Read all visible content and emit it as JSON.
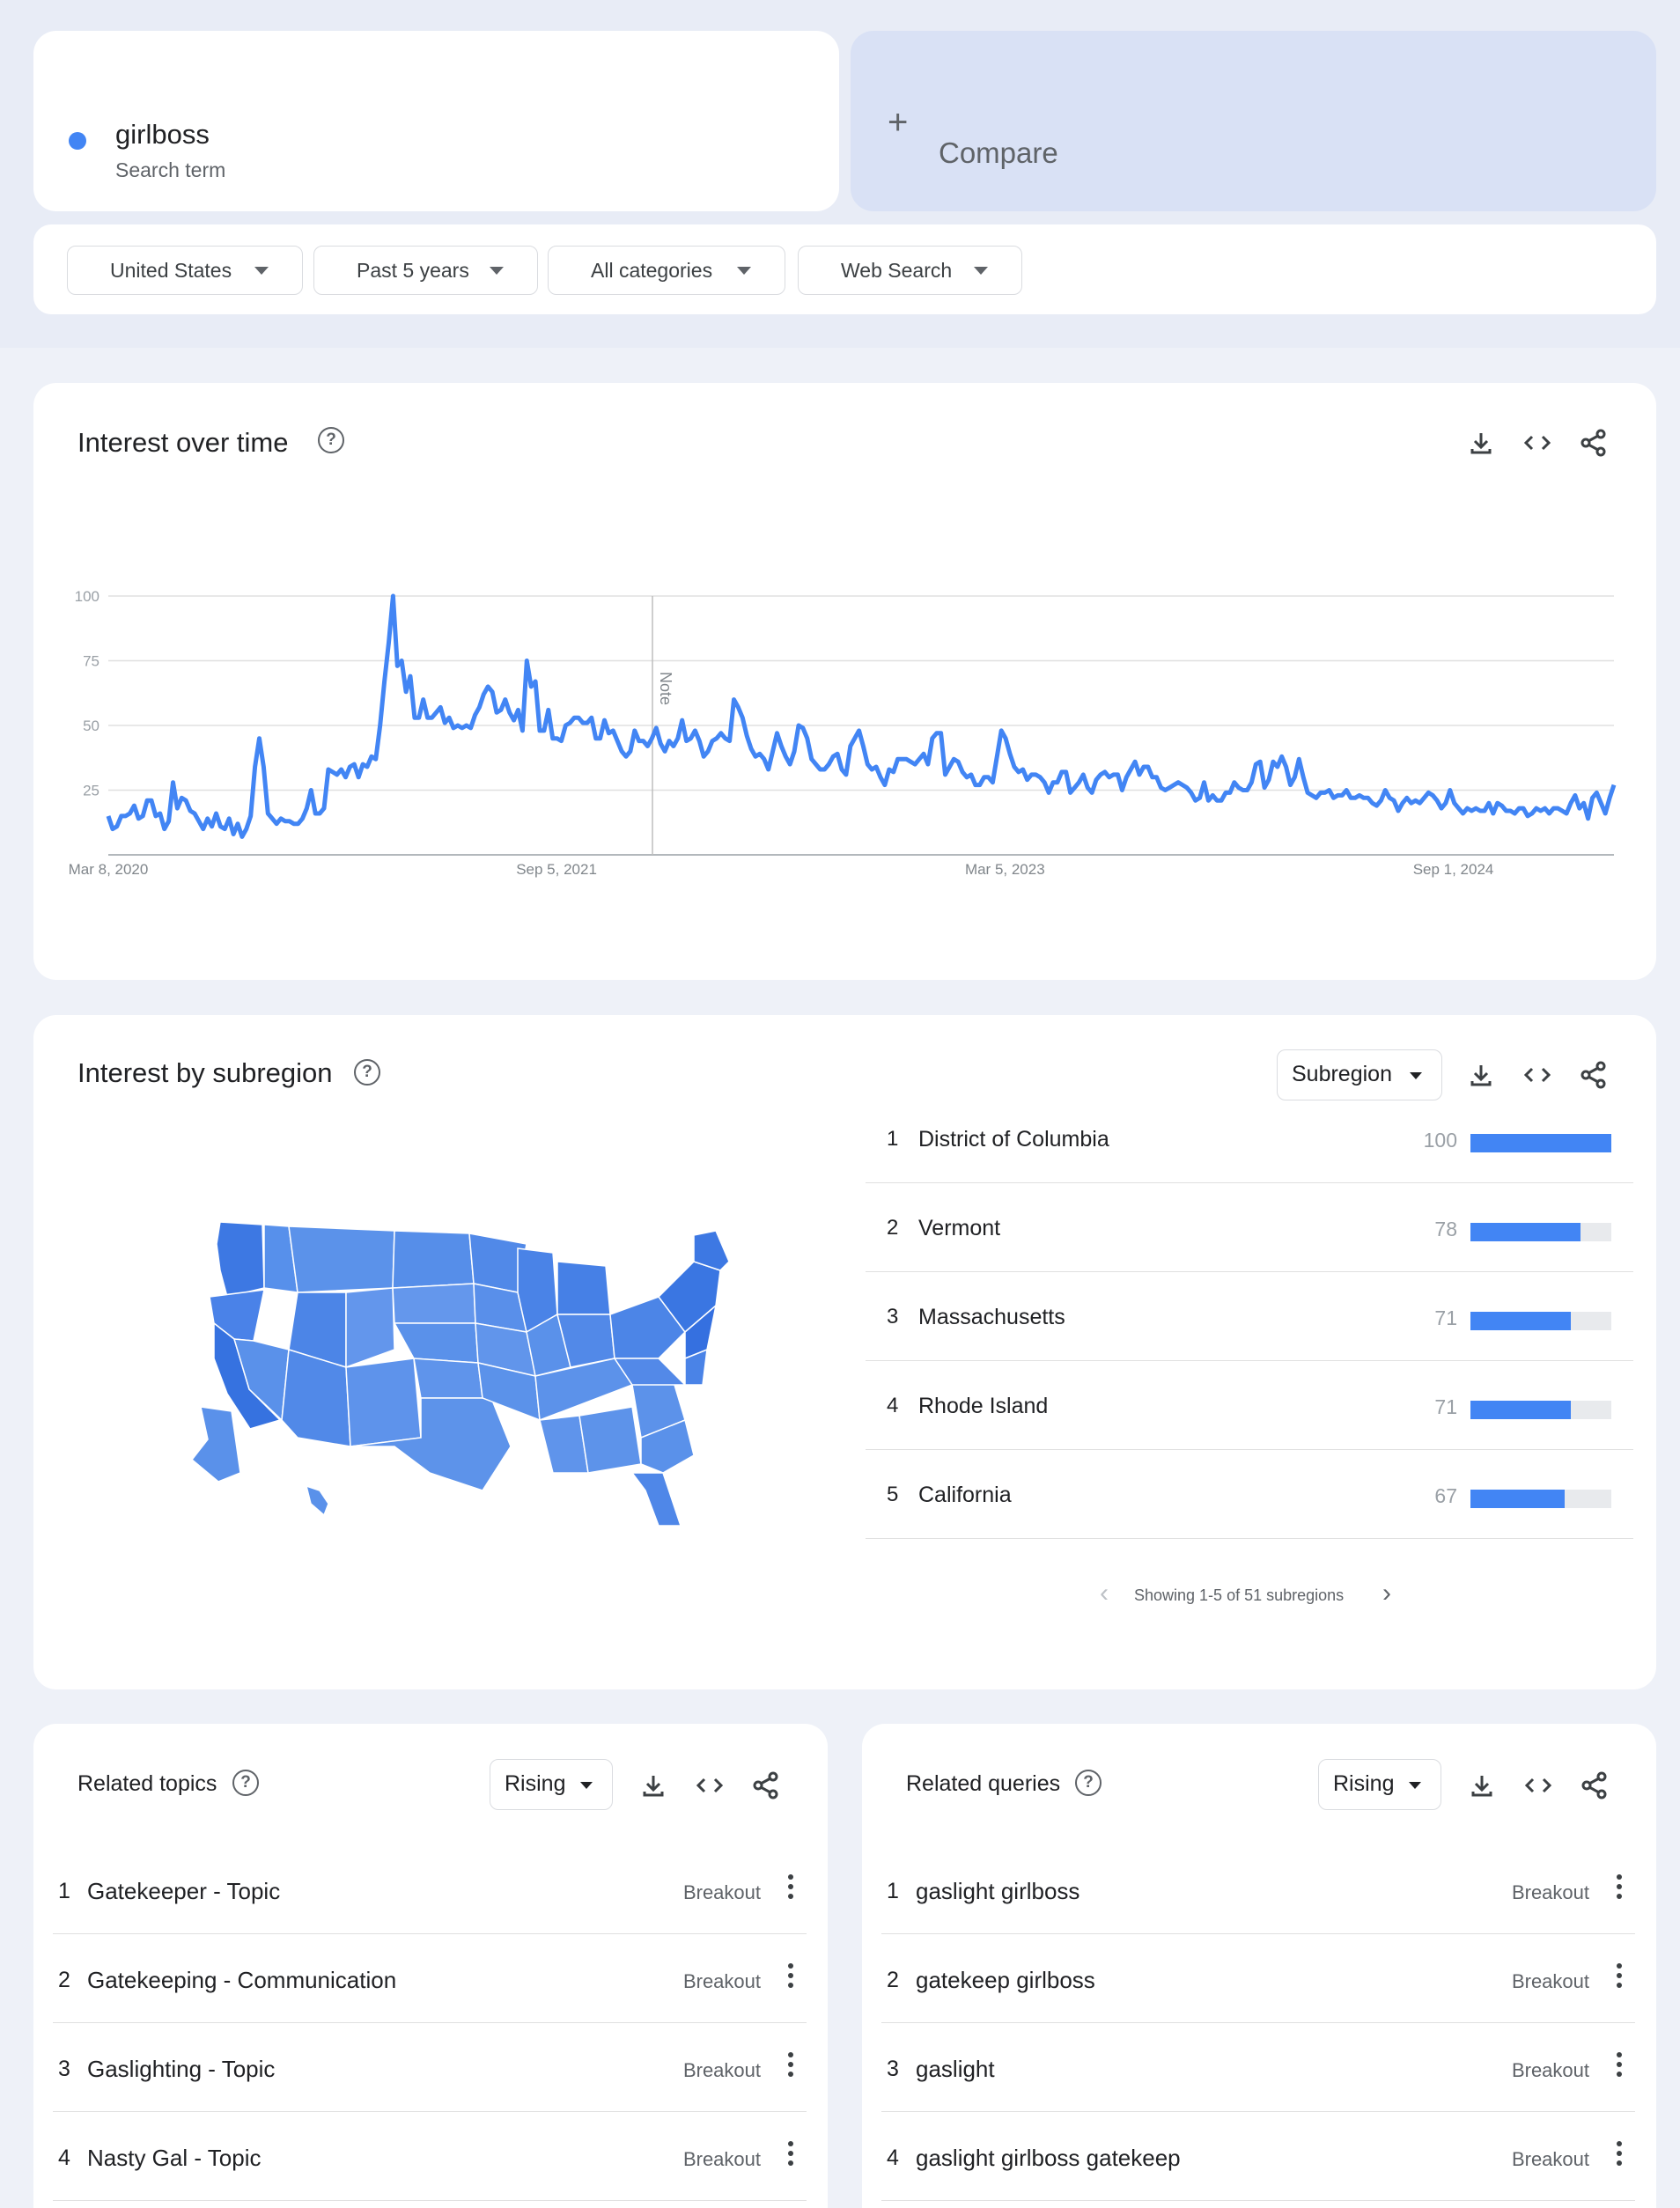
{
  "search": {
    "term": "girlboss",
    "subtitle": "Search term",
    "compare_label": "Compare",
    "color": "#4285f4"
  },
  "filters": [
    "United States",
    "Past 5 years",
    "All categories",
    "Web Search"
  ],
  "interest_over_time": {
    "title": "Interest over time",
    "note_label": "Note",
    "chart_data": {
      "type": "line",
      "title": "",
      "xlabel": "",
      "ylabel": "",
      "ylim": [
        0,
        100
      ],
      "yticks": [
        25,
        50,
        75,
        100
      ],
      "xtick_labels": [
        "Mar 8, 2020",
        "Sep 5, 2021",
        "Mar 5, 2023",
        "Sep 1, 2024"
      ],
      "grid": true,
      "color": "#4285f4",
      "series": [
        {
          "values": [
            15,
            10,
            11,
            15,
            15,
            16,
            19,
            14,
            15,
            21,
            21,
            15,
            16,
            10,
            13,
            28,
            18,
            22,
            21,
            17,
            16,
            13,
            10,
            14,
            11,
            16,
            11,
            10,
            14,
            8,
            12,
            7,
            10,
            15,
            34,
            45,
            34,
            16,
            14,
            12,
            14,
            13,
            13,
            12,
            12,
            14,
            18,
            25,
            16,
            16,
            18,
            33,
            32,
            31,
            33,
            30,
            34,
            35,
            30,
            35,
            34,
            38,
            37,
            50,
            67,
            82,
            100,
            73,
            75,
            63,
            69,
            53,
            53,
            60,
            53,
            53,
            55,
            57,
            51,
            53,
            49,
            50,
            49,
            50,
            49,
            54,
            57,
            62,
            65,
            63,
            55,
            56,
            60,
            55,
            52,
            56,
            48,
            75,
            65,
            67,
            48,
            48,
            56,
            45,
            45,
            44,
            50,
            51,
            53,
            53,
            51,
            51,
            53,
            45,
            45,
            52,
            47,
            48,
            44,
            40,
            38,
            40,
            48,
            44,
            44,
            42,
            45,
            49,
            43,
            40,
            44,
            42,
            45,
            52,
            44,
            45,
            48,
            44,
            38,
            40,
            44,
            45,
            47,
            45,
            44,
            60,
            57,
            53,
            46,
            41,
            38,
            39,
            37,
            33,
            40,
            47,
            42,
            38,
            35,
            40,
            50,
            49,
            45,
            37,
            35,
            33,
            33,
            35,
            38,
            39,
            33,
            31,
            42,
            45,
            48,
            42,
            35,
            33,
            34,
            30,
            27,
            33,
            32,
            37,
            37,
            37,
            36,
            35,
            37,
            39,
            35,
            45,
            47,
            47,
            31,
            34,
            37,
            36,
            32,
            30,
            31,
            27,
            27,
            30,
            30,
            28,
            38,
            48,
            45,
            39,
            34,
            32,
            33,
            29,
            31,
            31,
            30,
            28,
            24,
            28,
            28,
            32,
            32,
            24,
            26,
            28,
            31,
            26,
            24,
            29,
            31,
            32,
            30,
            31,
            31,
            25,
            30,
            33,
            36,
            31,
            34,
            34,
            30,
            30,
            26,
            25,
            26,
            27,
            28,
            27,
            26,
            24,
            21,
            22,
            28,
            21,
            23,
            21,
            21,
            24,
            24,
            28,
            26,
            25,
            25,
            28,
            35,
            36,
            26,
            29,
            36,
            34,
            38,
            34,
            27,
            30,
            37,
            30,
            24,
            23,
            22,
            24,
            24,
            25,
            22,
            23,
            23,
            25,
            22,
            22,
            23,
            22,
            22,
            20,
            19,
            21,
            25,
            22,
            21,
            17,
            20,
            22,
            20,
            21,
            20,
            22,
            24,
            23,
            21,
            18,
            20,
            25,
            20,
            18,
            16,
            18,
            17,
            18,
            17,
            17,
            20,
            16,
            20,
            19,
            17,
            17,
            16,
            18,
            18,
            15,
            16,
            18,
            17,
            18,
            16,
            18,
            18,
            17,
            16,
            20,
            23,
            18,
            20,
            14,
            22,
            24,
            20,
            16,
            22,
            27
          ]
        }
      ]
    }
  },
  "subregion": {
    "title": "Interest by subregion",
    "view_select": "Subregion",
    "rows": [
      {
        "rank": "1",
        "name": "District of Columbia",
        "value": "100",
        "pct": 100
      },
      {
        "rank": "2",
        "name": "Vermont",
        "value": "78",
        "pct": 78
      },
      {
        "rank": "3",
        "name": "Massachusetts",
        "value": "71",
        "pct": 71
      },
      {
        "rank": "4",
        "name": "Rhode Island",
        "value": "71",
        "pct": 71
      },
      {
        "rank": "5",
        "name": "California",
        "value": "67",
        "pct": 67
      }
    ],
    "pager_text": "Showing 1-5 of 51 subregions",
    "map_color": "#4f87e6"
  },
  "related_topics": {
    "title": "Related topics",
    "select": "Rising",
    "rows": [
      {
        "rank": "1",
        "name": "Gatekeeper - Topic",
        "badge": "Breakout"
      },
      {
        "rank": "2",
        "name": "Gatekeeping - Communication",
        "badge": "Breakout"
      },
      {
        "rank": "3",
        "name": "Gaslighting - Topic",
        "badge": "Breakout"
      },
      {
        "rank": "4",
        "name": "Nasty Gal - Topic",
        "badge": "Breakout"
      }
    ]
  },
  "related_queries": {
    "title": "Related queries",
    "select": "Rising",
    "rows": [
      {
        "rank": "1",
        "name": "gaslight girlboss",
        "badge": "Breakout"
      },
      {
        "rank": "2",
        "name": "gatekeep girlboss",
        "badge": "Breakout"
      },
      {
        "rank": "3",
        "name": "gaslight",
        "badge": "Breakout"
      },
      {
        "rank": "4",
        "name": "gaslight girlboss gatekeep",
        "badge": "Breakout"
      }
    ]
  },
  "icons": {
    "help": "?",
    "download": "download-icon",
    "embed": "embed-icon",
    "share": "share-icon"
  }
}
